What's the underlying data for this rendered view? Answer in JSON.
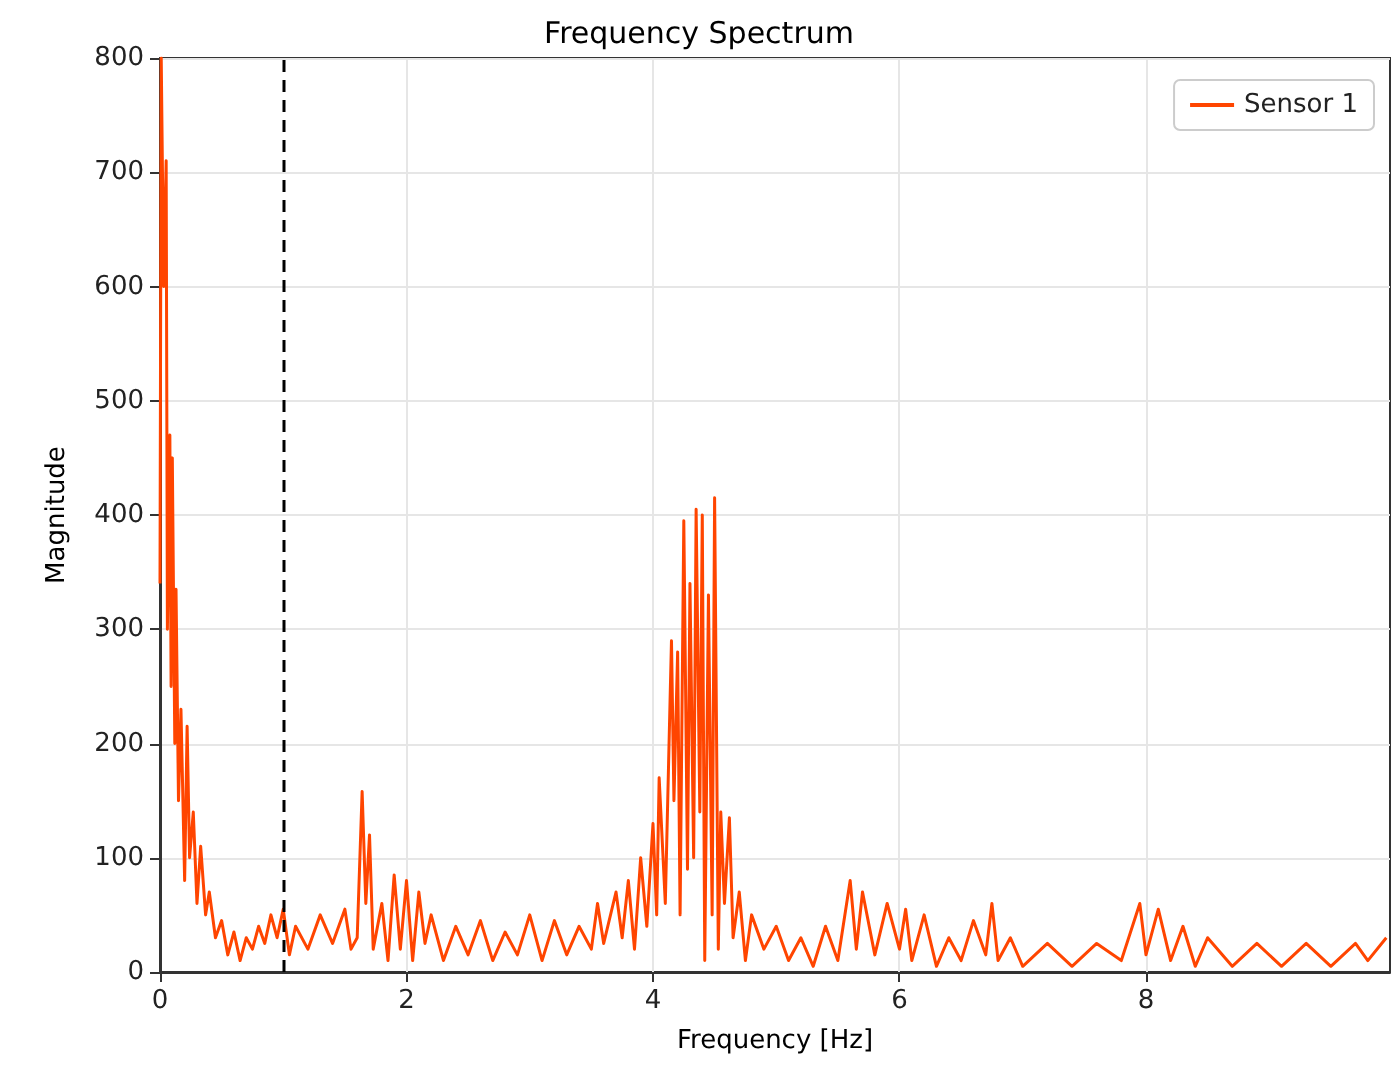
{
  "chart_data": {
    "type": "line",
    "title": "Frequency Spectrum",
    "xlabel": "Frequency [Hz]",
    "ylabel": "Magnitude",
    "xlim": [
      0,
      9.98
    ],
    "xticks": [
      0,
      2,
      4,
      6,
      8
    ],
    "ylim": [
      0,
      800
    ],
    "yticks": [
      0,
      100,
      200,
      300,
      400,
      500,
      600,
      700,
      800
    ],
    "grid": true,
    "legend": "top right",
    "ref_lines": [
      {
        "axis": "x",
        "value": 1,
        "color": "#000000",
        "line_style": "dashed"
      }
    ],
    "series": [
      {
        "name": "Sensor 1",
        "color": "#ff4500",
        "x": [
          0,
          0.01,
          0.03,
          0.05,
          0.06,
          0.08,
          0.09,
          0.1,
          0.12,
          0.13,
          0.15,
          0.17,
          0.2,
          0.22,
          0.24,
          0.27,
          0.3,
          0.33,
          0.37,
          0.4,
          0.45,
          0.5,
          0.55,
          0.6,
          0.65,
          0.7,
          0.75,
          0.8,
          0.85,
          0.9,
          0.95,
          1.0,
          1.05,
          1.1,
          1.2,
          1.3,
          1.4,
          1.5,
          1.55,
          1.6,
          1.64,
          1.67,
          1.7,
          1.73,
          1.8,
          1.85,
          1.9,
          1.95,
          2.0,
          2.05,
          2.1,
          2.15,
          2.2,
          2.3,
          2.4,
          2.5,
          2.6,
          2.7,
          2.8,
          2.9,
          3.0,
          3.1,
          3.2,
          3.3,
          3.4,
          3.5,
          3.55,
          3.6,
          3.7,
          3.75,
          3.8,
          3.85,
          3.9,
          3.95,
          4.0,
          4.03,
          4.05,
          4.1,
          4.15,
          4.17,
          4.2,
          4.22,
          4.25,
          4.28,
          4.3,
          4.33,
          4.35,
          4.38,
          4.4,
          4.42,
          4.45,
          4.48,
          4.5,
          4.53,
          4.55,
          4.58,
          4.62,
          4.65,
          4.7,
          4.75,
          4.8,
          4.9,
          5.0,
          5.1,
          5.2,
          5.3,
          5.4,
          5.5,
          5.6,
          5.65,
          5.7,
          5.8,
          5.9,
          6.0,
          6.05,
          6.1,
          6.2,
          6.3,
          6.4,
          6.5,
          6.6,
          6.7,
          6.75,
          6.8,
          6.9,
          7.0,
          7.2,
          7.4,
          7.6,
          7.8,
          7.95,
          8.0,
          8.1,
          8.2,
          8.3,
          8.4,
          8.5,
          8.7,
          8.9,
          9.1,
          9.3,
          9.5,
          9.7,
          9.8,
          9.95
        ],
        "values": [
          340,
          800,
          600,
          710,
          300,
          470,
          250,
          450,
          200,
          335,
          150,
          230,
          80,
          215,
          100,
          140,
          60,
          110,
          50,
          70,
          30,
          45,
          15,
          35,
          10,
          30,
          20,
          40,
          25,
          50,
          30,
          55,
          15,
          40,
          20,
          50,
          25,
          55,
          20,
          30,
          158,
          60,
          120,
          20,
          60,
          10,
          85,
          20,
          80,
          10,
          70,
          25,
          50,
          10,
          40,
          15,
          45,
          10,
          35,
          15,
          50,
          10,
          45,
          15,
          40,
          20,
          60,
          25,
          70,
          30,
          80,
          20,
          100,
          40,
          130,
          50,
          170,
          60,
          290,
          150,
          280,
          50,
          395,
          90,
          340,
          100,
          405,
          140,
          400,
          10,
          330,
          50,
          415,
          20,
          140,
          60,
          135,
          30,
          70,
          10,
          50,
          20,
          40,
          10,
          30,
          5,
          40,
          10,
          80,
          20,
          70,
          15,
          60,
          20,
          55,
          10,
          50,
          5,
          30,
          10,
          45,
          15,
          60,
          10,
          30,
          5,
          25,
          5,
          25,
          10,
          60,
          15,
          55,
          10,
          40,
          5,
          30,
          5,
          25,
          5,
          25,
          5,
          25,
          10,
          30
        ]
      }
    ]
  }
}
